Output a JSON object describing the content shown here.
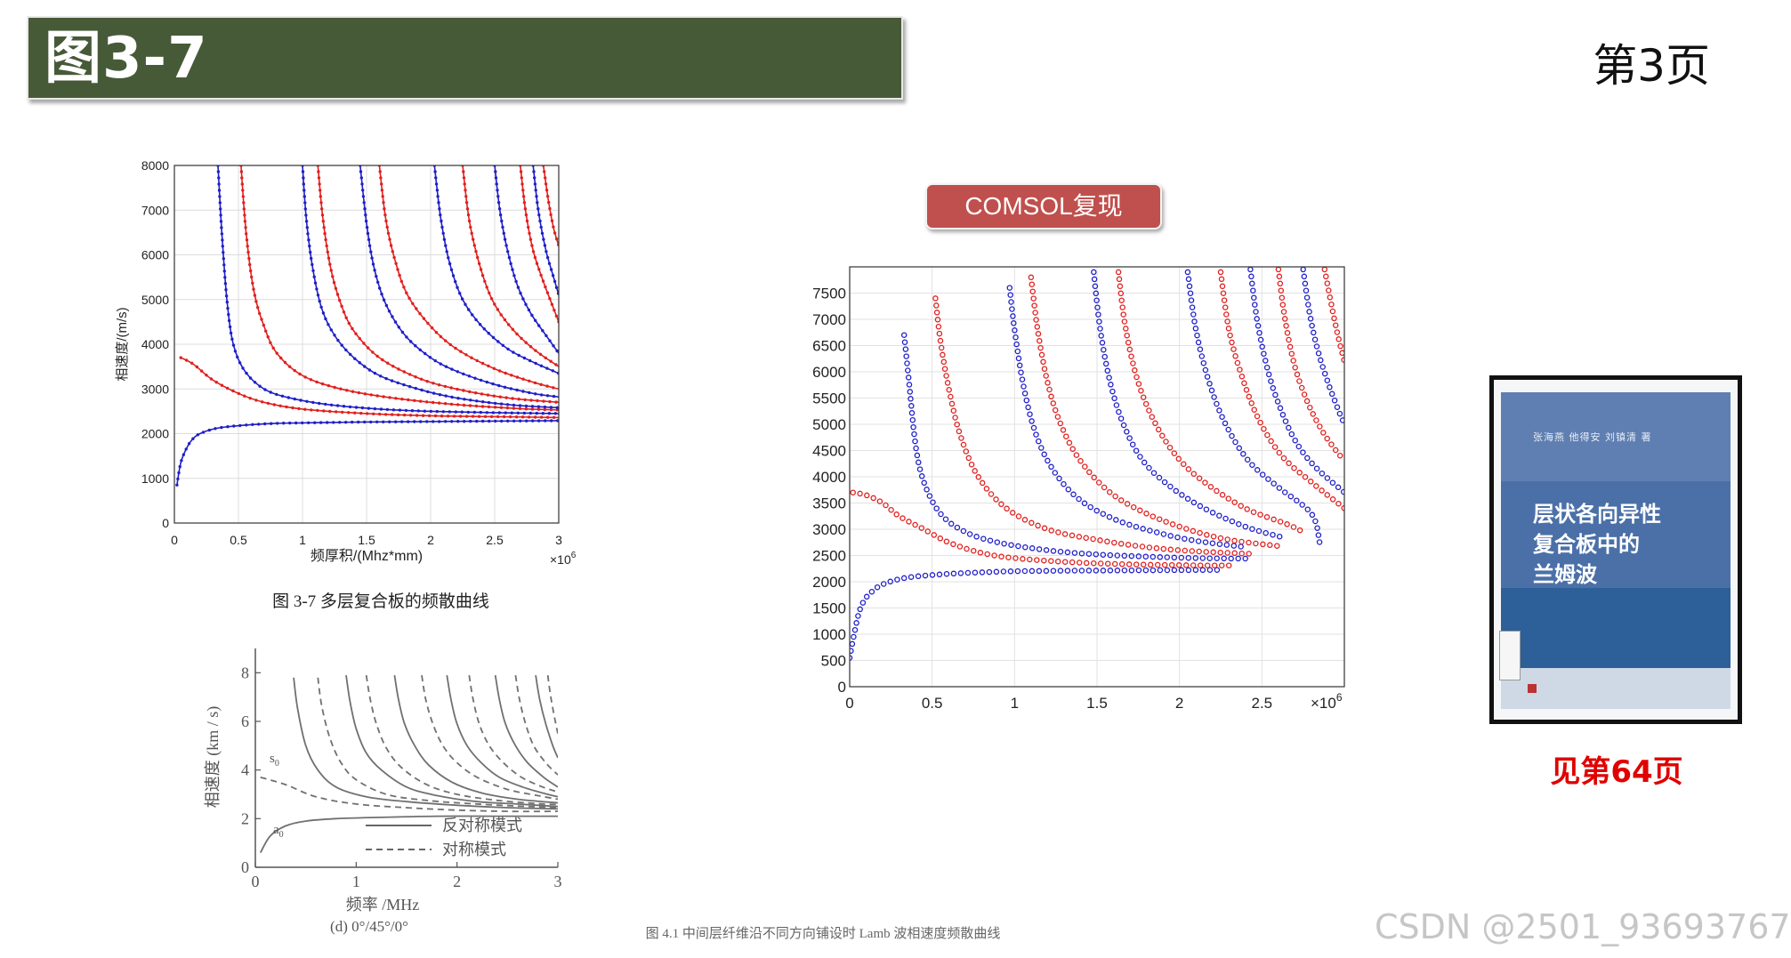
{
  "header": {
    "title": "图3-7",
    "page_label": "第3页"
  },
  "comsol_label": "COMSOL复现",
  "book": {
    "authors": "张海燕   他得安   刘镇清  著",
    "title_lines": [
      "层状各向异性",
      "复合板中的",
      "兰姆波"
    ]
  },
  "see_page": "见第64页",
  "watermark": "CSDN @2501_93693767",
  "colors": {
    "blue": "#1f1fc8",
    "red": "#e0201e",
    "header_bg": "#475a37",
    "button_bg": "#c0504d",
    "accent_red": "#e00000"
  },
  "chart_data": [
    {
      "id": "original",
      "type": "line",
      "title": "",
      "caption": "图 3-7  多层复合板的频散曲线",
      "xlabel": "频厚积/(Mhz*mm)",
      "ylabel": "相速度/(m/s)",
      "x_multiplier": "×10^6",
      "x_tick_labels": [
        "0",
        "0.5",
        "1",
        "1.5",
        "2",
        "2.5",
        "3"
      ],
      "y_tick_labels": [
        "0",
        "1000",
        "2000",
        "3000",
        "4000",
        "5000",
        "6000",
        "7000",
        "8000"
      ],
      "xlim": [
        0,
        3
      ],
      "ylim": [
        0,
        8000
      ],
      "grid": true,
      "series": [
        {
          "color": "blue",
          "x": [
            0.02,
            0.05,
            0.1,
            0.15,
            0.2,
            0.3,
            0.4,
            0.6,
            0.8,
            1.0,
            1.5,
            2.0,
            2.5,
            3.0
          ],
          "y": [
            850,
            1350,
            1700,
            1900,
            2000,
            2100,
            2150,
            2200,
            2230,
            2240,
            2260,
            2270,
            2280,
            2290
          ]
        },
        {
          "color": "red",
          "x": [
            0.05,
            0.15,
            0.3,
            0.5,
            0.7,
            1.0,
            1.5,
            2.0,
            2.5,
            3.0
          ],
          "y": [
            3700,
            3550,
            3200,
            2900,
            2700,
            2550,
            2450,
            2400,
            2380,
            2360
          ]
        },
        {
          "color": "blue",
          "x": [
            0.34,
            0.37,
            0.41,
            0.46,
            0.55,
            0.7,
            0.9,
            1.2,
            1.6,
            2.0,
            2.5,
            3.0
          ],
          "y": [
            8000,
            6500,
            5000,
            4000,
            3400,
            3000,
            2800,
            2650,
            2550,
            2500,
            2470,
            2450
          ]
        },
        {
          "color": "red",
          "x": [
            0.52,
            0.56,
            0.62,
            0.7,
            0.8,
            1.0,
            1.3,
            1.7,
            2.2,
            2.7,
            3.0
          ],
          "y": [
            8000,
            6500,
            5200,
            4400,
            3800,
            3300,
            3000,
            2800,
            2650,
            2560,
            2530
          ]
        },
        {
          "color": "blue",
          "x": [
            1.0,
            1.03,
            1.08,
            1.15,
            1.25,
            1.4,
            1.6,
            1.9,
            2.2,
            2.6,
            3.0
          ],
          "y": [
            8000,
            6800,
            5700,
            4800,
            4200,
            3700,
            3300,
            3000,
            2800,
            2650,
            2580
          ]
        },
        {
          "color": "red",
          "x": [
            1.12,
            1.16,
            1.22,
            1.3,
            1.4,
            1.6,
            1.9,
            2.2,
            2.6,
            3.0
          ],
          "y": [
            8000,
            6800,
            5700,
            4900,
            4300,
            3700,
            3250,
            3000,
            2800,
            2700
          ]
        },
        {
          "color": "blue",
          "x": [
            1.45,
            1.5,
            1.56,
            1.65,
            1.8,
            2.0,
            2.2,
            2.5,
            2.8,
            3.0
          ],
          "y": [
            8000,
            6700,
            5700,
            4900,
            4200,
            3700,
            3400,
            3100,
            2900,
            2820
          ]
        },
        {
          "color": "red",
          "x": [
            1.6,
            1.65,
            1.72,
            1.82,
            2.0,
            2.2,
            2.5,
            2.8,
            3.0
          ],
          "y": [
            8000,
            6800,
            5900,
            5100,
            4400,
            3900,
            3450,
            3150,
            3000
          ]
        },
        {
          "color": "blue",
          "x": [
            2.03,
            2.08,
            2.15,
            2.25,
            2.4,
            2.6,
            2.8,
            3.0
          ],
          "y": [
            8000,
            6800,
            5800,
            5000,
            4400,
            3900,
            3600,
            3350
          ]
        },
        {
          "color": "red",
          "x": [
            2.25,
            2.3,
            2.38,
            2.48,
            2.62,
            2.8,
            3.0
          ],
          "y": [
            8000,
            6800,
            5800,
            5000,
            4400,
            3900,
            3500
          ]
        },
        {
          "color": "blue",
          "x": [
            2.5,
            2.54,
            2.6,
            2.68,
            2.78,
            2.9,
            3.0
          ],
          "y": [
            8000,
            7000,
            6100,
            5300,
            4700,
            4200,
            3800
          ]
        },
        {
          "color": "red",
          "x": [
            2.7,
            2.74,
            2.8,
            2.88,
            2.96,
            3.0
          ],
          "y": [
            8000,
            7000,
            6100,
            5400,
            4800,
            4500
          ]
        },
        {
          "color": "blue",
          "x": [
            2.8,
            2.84,
            2.9,
            2.96,
            3.0
          ],
          "y": [
            8000,
            7000,
            6100,
            5500,
            5100
          ]
        },
        {
          "color": "red",
          "x": [
            2.88,
            2.92,
            2.96,
            3.0
          ],
          "y": [
            8000,
            7200,
            6600,
            6200
          ]
        }
      ]
    },
    {
      "id": "comsol",
      "type": "scatter",
      "title": "",
      "x_multiplier": "×10^6",
      "x_tick_labels": [
        "0",
        "0.5",
        "1",
        "1.5",
        "2",
        "2.5"
      ],
      "y_tick_labels": [
        "0",
        "500",
        "1000",
        "1500",
        "2000",
        "2500",
        "3000",
        "3500",
        "4000",
        "4500",
        "5000",
        "5500",
        "6000",
        "6500",
        "7000",
        "7500"
      ],
      "xlim": [
        0,
        3
      ],
      "ylim": [
        0,
        8000
      ],
      "grid": true,
      "series": [
        {
          "color": "blue",
          "x": [
            0.0,
            0.03,
            0.06,
            0.1,
            0.15,
            0.2,
            0.3,
            0.4,
            0.6,
            0.8,
            1.0,
            1.3,
            1.6,
            1.9,
            2.2,
            2.25
          ],
          "y": [
            550,
            1050,
            1450,
            1700,
            1850,
            1950,
            2050,
            2100,
            2150,
            2180,
            2200,
            2210,
            2215,
            2220,
            2225,
            2225
          ]
        },
        {
          "color": "red",
          "x": [
            0.02,
            0.1,
            0.2,
            0.3,
            0.45,
            0.6,
            0.8,
            1.0,
            1.3,
            1.6,
            1.9,
            2.2,
            2.3
          ],
          "y": [
            3700,
            3650,
            3500,
            3250,
            3000,
            2750,
            2550,
            2450,
            2380,
            2340,
            2320,
            2310,
            2310
          ]
        },
        {
          "color": "blue",
          "x": [
            0.33,
            0.36,
            0.4,
            0.45,
            0.55,
            0.7,
            0.9,
            1.2,
            1.5,
            1.8,
            2.1,
            2.4
          ],
          "y": [
            6700,
            5800,
            4600,
            3900,
            3300,
            2950,
            2750,
            2600,
            2520,
            2480,
            2450,
            2440
          ]
        },
        {
          "color": "red",
          "x": [
            0.52,
            0.55,
            0.6,
            0.67,
            0.78,
            0.95,
            1.2,
            1.5,
            1.8,
            2.1,
            2.45
          ],
          "y": [
            7400,
            6600,
            5700,
            4800,
            4000,
            3400,
            3000,
            2800,
            2660,
            2580,
            2530
          ]
        },
        {
          "color": "blue",
          "x": [
            0.97,
            1.0,
            1.05,
            1.12,
            1.22,
            1.38,
            1.6,
            1.85,
            2.1,
            2.4
          ],
          "y": [
            7600,
            6800,
            5800,
            4900,
            4200,
            3600,
            3200,
            2950,
            2780,
            2660
          ]
        },
        {
          "color": "red",
          "x": [
            1.1,
            1.14,
            1.2,
            1.28,
            1.4,
            1.58,
            1.8,
            2.05,
            2.3,
            2.6
          ],
          "y": [
            7800,
            6800,
            5800,
            5000,
            4300,
            3700,
            3300,
            3000,
            2800,
            2680
          ]
        },
        {
          "color": "blue",
          "x": [
            1.48,
            1.52,
            1.58,
            1.66,
            1.78,
            1.95,
            2.15,
            2.4,
            2.62
          ],
          "y": [
            7900,
            6800,
            5800,
            5000,
            4300,
            3800,
            3400,
            3050,
            2850
          ]
        },
        {
          "color": "red",
          "x": [
            1.63,
            1.67,
            1.74,
            1.84,
            1.98,
            2.15,
            2.4,
            2.65,
            2.75
          ],
          "y": [
            7900,
            6900,
            5900,
            5100,
            4400,
            3900,
            3400,
            3100,
            2950
          ]
        },
        {
          "color": "blue",
          "x": [
            2.05,
            2.1,
            2.18,
            2.28,
            2.42,
            2.6,
            2.8,
            2.85
          ],
          "y": [
            7900,
            6800,
            5800,
            5000,
            4300,
            3800,
            3300,
            2750
          ]
        },
        {
          "color": "red",
          "x": [
            2.25,
            2.3,
            2.38,
            2.48,
            2.62,
            2.8,
            3.0
          ],
          "y": [
            7900,
            6800,
            5900,
            5100,
            4400,
            3900,
            3400
          ]
        },
        {
          "color": "blue",
          "x": [
            2.43,
            2.47,
            2.53,
            2.6,
            2.7,
            2.82,
            3.0
          ],
          "y": [
            7950,
            7000,
            6100,
            5400,
            4700,
            4200,
            3700
          ]
        },
        {
          "color": "red",
          "x": [
            2.6,
            2.64,
            2.7,
            2.78,
            2.88,
            3.0
          ],
          "y": [
            7950,
            7000,
            6100,
            5400,
            4800,
            4300
          ]
        },
        {
          "color": "blue",
          "x": [
            2.75,
            2.79,
            2.84,
            2.9,
            2.96,
            3.0
          ],
          "y": [
            7950,
            7100,
            6400,
            5800,
            5300,
            5000
          ]
        },
        {
          "color": "red",
          "x": [
            2.88,
            2.92,
            2.96,
            3.0
          ],
          "y": [
            7950,
            7300,
            6700,
            6200
          ]
        }
      ]
    },
    {
      "id": "book_scan",
      "type": "line",
      "title": "",
      "caption": "图 4.1   中间层纤维沿不同方向铺设时 Lamb 波相速度频散曲线",
      "subcaption": "(d) 0°/45°/0°",
      "xlabel": "频率 /MHz",
      "ylabel": "相速度 (km / s)",
      "x_tick_labels": [
        "0",
        "1",
        "2",
        "3"
      ],
      "y_tick_labels": [
        "0",
        "2",
        "4",
        "6",
        "8"
      ],
      "xlim": [
        0,
        3
      ],
      "ylim": [
        0,
        9
      ],
      "grid": false,
      "annotations": [
        "s0",
        "a0"
      ],
      "legend": {
        "placement": "bottom-center",
        "entries": [
          {
            "label": "反对称模式",
            "style": "solid"
          },
          {
            "label": "对称模式",
            "style": "dashed"
          }
        ]
      },
      "series": [
        {
          "style": "solid",
          "x": [
            0.05,
            0.15,
            0.3,
            0.5,
            0.8,
            1.2,
            1.8,
            2.4,
            3.0
          ],
          "y": [
            0.6,
            1.3,
            1.7,
            1.9,
            2.0,
            2.05,
            2.1,
            2.1,
            2.1
          ]
        },
        {
          "style": "dashed",
          "x": [
            0.05,
            0.3,
            0.6,
            1.0,
            1.5,
            2.0,
            2.5,
            3.0
          ],
          "y": [
            3.7,
            3.4,
            2.9,
            2.6,
            2.45,
            2.35,
            2.3,
            2.3
          ]
        },
        {
          "style": "solid",
          "x": [
            0.38,
            0.42,
            0.5,
            0.62,
            0.8,
            1.1,
            1.5,
            2.0,
            2.5,
            3.0
          ],
          "y": [
            7.8,
            6.5,
            5.0,
            4.0,
            3.3,
            2.9,
            2.7,
            2.55,
            2.45,
            2.4
          ]
        },
        {
          "style": "dashed",
          "x": [
            0.62,
            0.66,
            0.74,
            0.85,
            1.0,
            1.3,
            1.7,
            2.2,
            2.7,
            3.0
          ],
          "y": [
            7.8,
            6.6,
            5.3,
            4.3,
            3.6,
            3.0,
            2.75,
            2.6,
            2.5,
            2.45
          ]
        },
        {
          "style": "solid",
          "x": [
            0.9,
            0.94,
            1.0,
            1.1,
            1.25,
            1.5,
            1.8,
            2.2,
            2.6,
            3.0
          ],
          "y": [
            7.9,
            6.8,
            5.7,
            4.7,
            4.0,
            3.3,
            2.95,
            2.7,
            2.6,
            2.5
          ]
        },
        {
          "style": "dashed",
          "x": [
            1.1,
            1.14,
            1.2,
            1.3,
            1.45,
            1.7,
            2.0,
            2.4,
            2.8,
            3.0
          ],
          "y": [
            7.9,
            6.9,
            5.9,
            4.9,
            4.1,
            3.4,
            3.0,
            2.75,
            2.62,
            2.58
          ]
        },
        {
          "style": "solid",
          "x": [
            1.38,
            1.42,
            1.48,
            1.58,
            1.72,
            1.95,
            2.25,
            2.6,
            3.0
          ],
          "y": [
            7.9,
            6.9,
            5.9,
            5.0,
            4.2,
            3.5,
            3.05,
            2.8,
            2.65
          ]
        },
        {
          "style": "dashed",
          "x": [
            1.65,
            1.69,
            1.76,
            1.86,
            2.0,
            2.2,
            2.5,
            2.8,
            3.0
          ],
          "y": [
            7.9,
            6.9,
            5.9,
            5.0,
            4.3,
            3.7,
            3.2,
            2.95,
            2.8
          ]
        },
        {
          "style": "solid",
          "x": [
            1.9,
            1.94,
            2.0,
            2.1,
            2.24,
            2.42,
            2.65,
            2.9,
            3.0
          ],
          "y": [
            7.9,
            6.9,
            5.9,
            5.0,
            4.3,
            3.7,
            3.3,
            3.0,
            2.9
          ]
        },
        {
          "style": "dashed",
          "x": [
            2.12,
            2.16,
            2.22,
            2.32,
            2.46,
            2.64,
            2.85,
            3.0
          ],
          "y": [
            7.9,
            6.9,
            5.9,
            5.0,
            4.3,
            3.7,
            3.3,
            3.1
          ]
        },
        {
          "style": "solid",
          "x": [
            2.38,
            2.42,
            2.48,
            2.58,
            2.7,
            2.86,
            3.0
          ],
          "y": [
            7.9,
            6.9,
            5.9,
            5.0,
            4.3,
            3.7,
            3.3
          ]
        },
        {
          "style": "dashed",
          "x": [
            2.58,
            2.62,
            2.68,
            2.76,
            2.88,
            3.0
          ],
          "y": [
            7.9,
            6.9,
            5.9,
            5.0,
            4.3,
            3.8
          ]
        },
        {
          "style": "solid",
          "x": [
            2.78,
            2.82,
            2.88,
            2.95,
            3.0
          ],
          "y": [
            7.9,
            6.9,
            5.9,
            5.0,
            4.5
          ]
        },
        {
          "style": "dashed",
          "x": [
            2.9,
            2.93,
            2.97,
            3.0
          ],
          "y": [
            7.9,
            7.0,
            6.1,
            5.5
          ]
        }
      ]
    }
  ]
}
